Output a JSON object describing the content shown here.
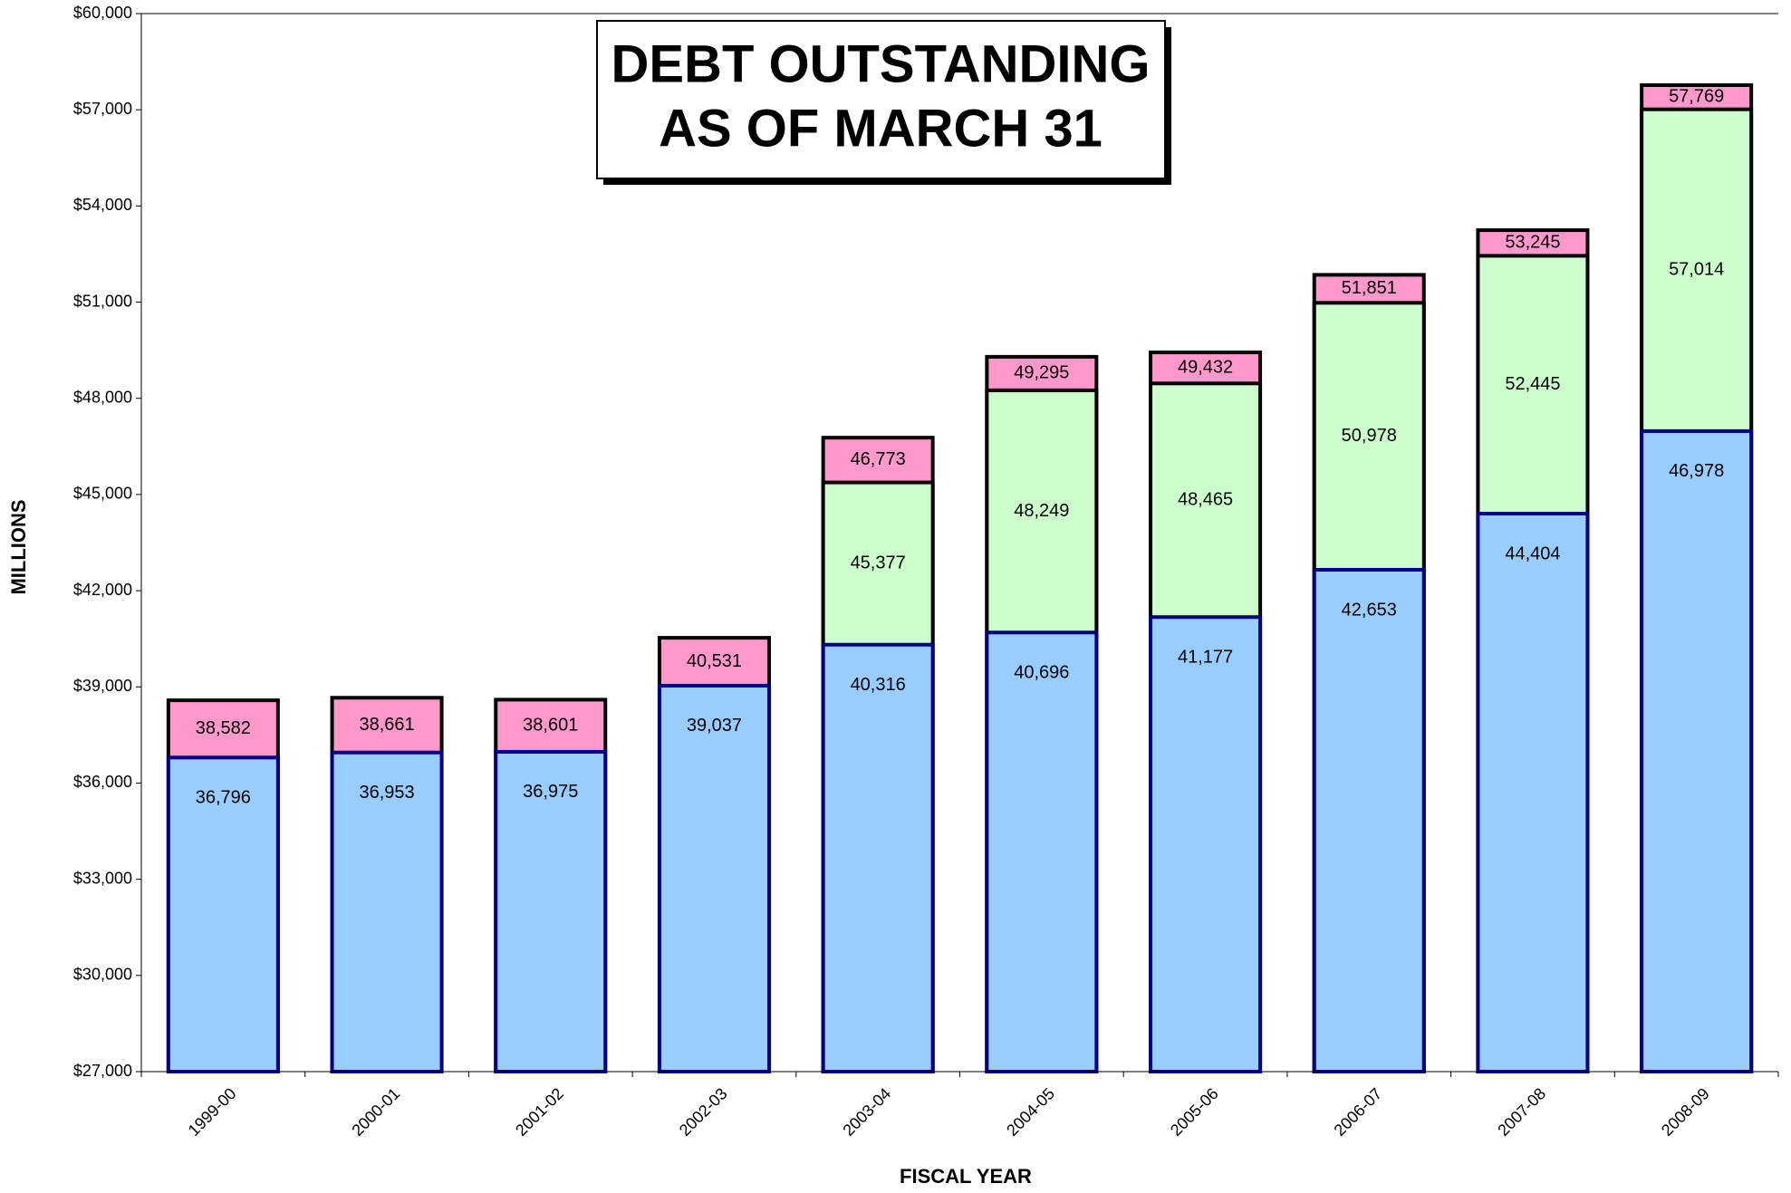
{
  "chart_data": {
    "type": "bar",
    "title": [
      "DEBT OUTSTANDING",
      "AS OF MARCH 31"
    ],
    "x_label": "FISCAL YEAR",
    "y_label": "MILLIONS",
    "categories": [
      "1999-00",
      "2000-01",
      "2001-02",
      "2002-03",
      "2003-04",
      "2004-05",
      "2005-06",
      "2006-07",
      "2007-08",
      "2008-09"
    ],
    "series": [
      {
        "color": "#ff99cc",
        "border": "#000000",
        "values": [
          38582,
          38661,
          38601,
          40531,
          46773,
          49295,
          49432,
          51851,
          53245,
          57769
        ]
      },
      {
        "color": "#ccffcc",
        "border": "#000000",
        "values": [
          null,
          null,
          null,
          null,
          45377,
          48249,
          48465,
          50978,
          52445,
          57014
        ]
      },
      {
        "color": "#99ccff",
        "border": "#000080",
        "values": [
          36796,
          36953,
          36975,
          39037,
          40316,
          40696,
          41177,
          42653,
          44404,
          46978
        ]
      }
    ],
    "value_labels": [
      [
        "38,582",
        "38,661",
        "38,601",
        "40,531",
        "46,773",
        "49,295",
        "49,432",
        "51,851",
        "53,245",
        "57,769"
      ],
      [
        null,
        null,
        null,
        null,
        "45,377",
        "48,249",
        "48,465",
        "50,978",
        "52,445",
        "57,014"
      ],
      [
        "36,796",
        "36,953",
        "36,975",
        "39,037",
        "40,316",
        "40,696",
        "41,177",
        "42,653",
        "44,404",
        "46,978"
      ]
    ],
    "ylim": [
      27000,
      60000
    ],
    "yticks": [
      {
        "value": 27000,
        "label": "$27,000"
      },
      {
        "value": 30000,
        "label": "$30,000"
      },
      {
        "value": 33000,
        "label": "$33,000"
      },
      {
        "value": 36000,
        "label": "$36,000"
      },
      {
        "value": 39000,
        "label": "$39,000"
      },
      {
        "value": 42000,
        "label": "$42,000"
      },
      {
        "value": 45000,
        "label": "$45,000"
      },
      {
        "value": 48000,
        "label": "$48,000"
      },
      {
        "value": 51000,
        "label": "$51,000"
      },
      {
        "value": 54000,
        "label": "$54,000"
      },
      {
        "value": 57000,
        "label": "$57,000"
      },
      {
        "value": 60000,
        "label": "$60,000"
      }
    ],
    "grid": false
  }
}
